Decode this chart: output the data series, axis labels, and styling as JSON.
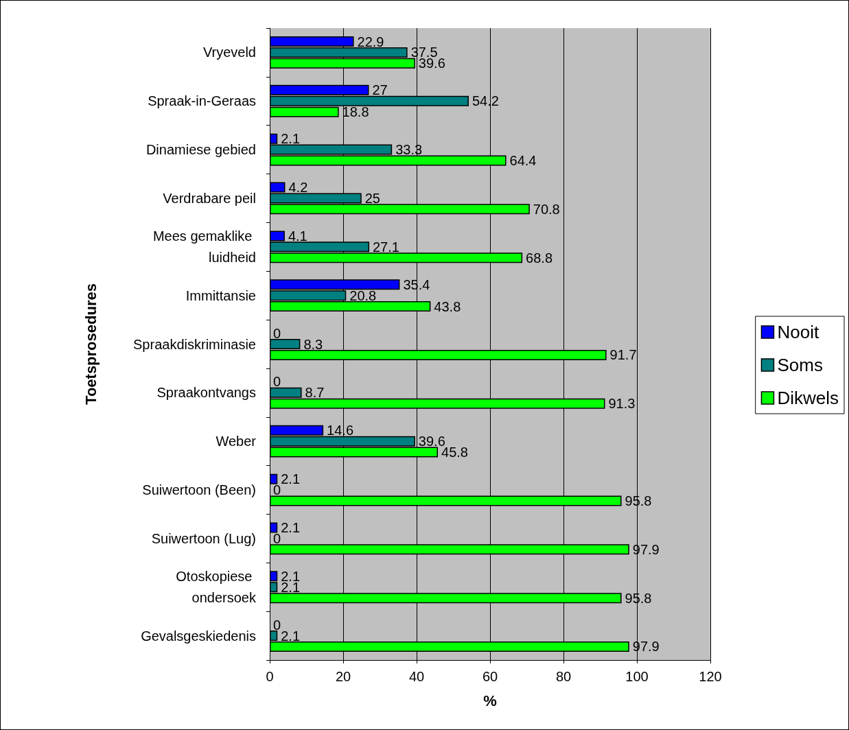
{
  "chart_data": {
    "type": "bar",
    "orientation": "horizontal",
    "xlabel": "%",
    "ylabel": "Toetsprosedures",
    "categories": [
      "Vryeveld",
      "Spraak-in-Geraas",
      "Dinamiese gebied",
      "Verdrabare peil",
      "Mees gemaklike luidheid",
      "Immittansie",
      "Spraakdiskriminasie",
      "Spraakontvangs",
      "Weber",
      "Suiwertoon (Been)",
      "Suiwertoon (Lug)",
      "Otoskopiese ondersoek",
      "Gevalsgeskiedenis"
    ],
    "series": [
      {
        "name": "Nooit",
        "color": "#0000ff",
        "values": [
          22.9,
          27,
          2.1,
          4.2,
          4.1,
          35.4,
          0,
          0,
          14.6,
          2.1,
          2.1,
          2.1,
          0
        ]
      },
      {
        "name": "Soms",
        "color": "#008080",
        "values": [
          37.5,
          54.2,
          33.3,
          25,
          27.1,
          20.8,
          8.3,
          8.7,
          39.6,
          0,
          0,
          2.1,
          2.1
        ]
      },
      {
        "name": "Dikwels",
        "color": "#00ff00",
        "values": [
          39.6,
          18.8,
          64.4,
          70.8,
          68.8,
          43.8,
          91.7,
          91.3,
          45.8,
          95.8,
          97.9,
          95.8,
          97.9
        ]
      }
    ],
    "xlim": [
      0,
      120
    ],
    "xticks": [
      0,
      20,
      40,
      60,
      80,
      100,
      120
    ],
    "grid": "x",
    "legend": "right",
    "data_labels": true
  }
}
